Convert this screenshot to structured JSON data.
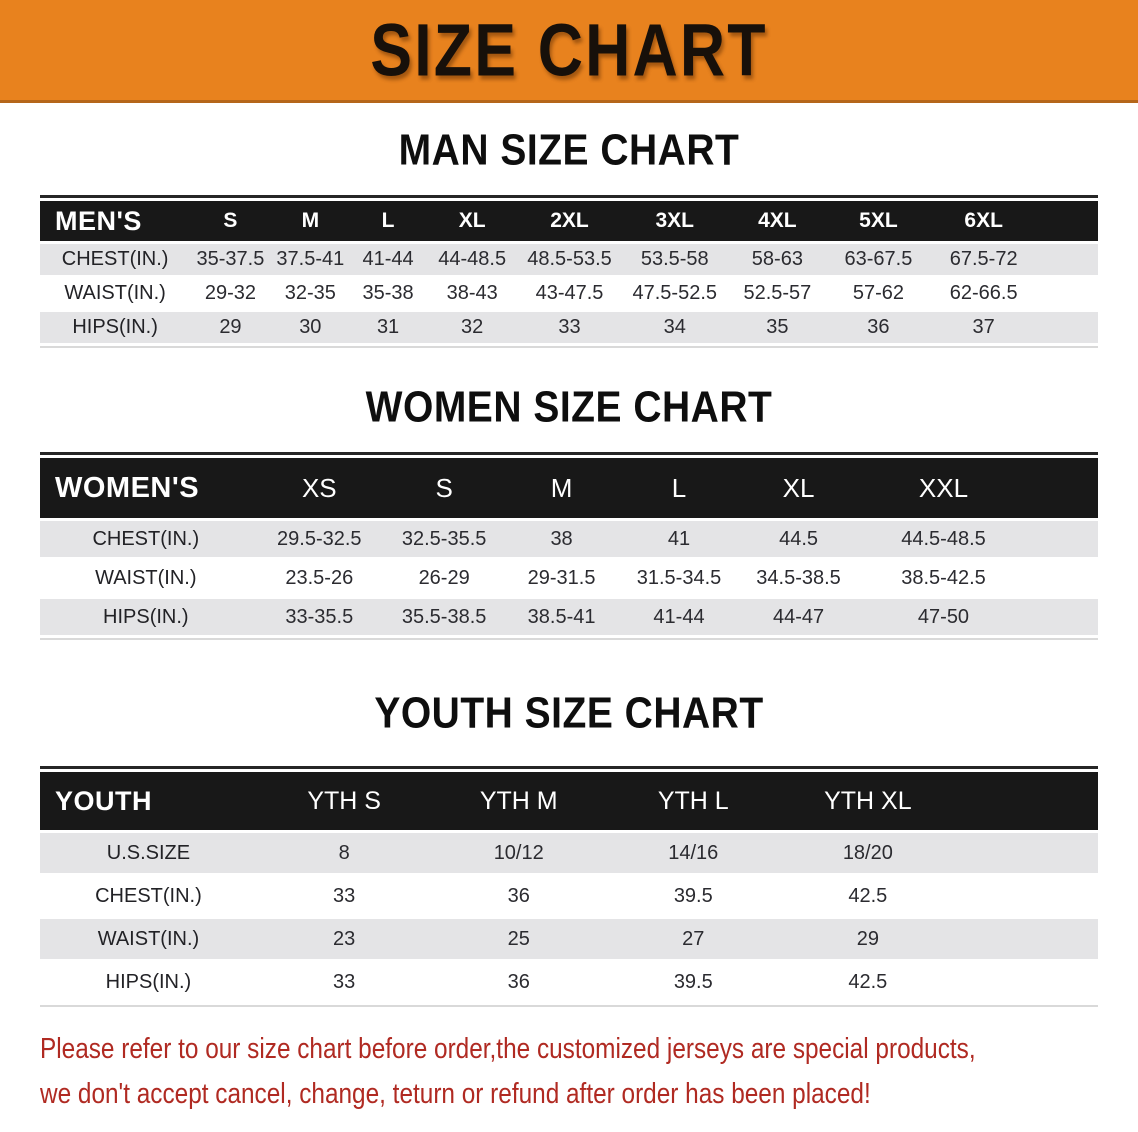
{
  "banner": {
    "title": "SIZE CHART"
  },
  "sections": [
    {
      "title": "MAN SIZE CHART",
      "table": {
        "corner": "MEN'S",
        "columns": [
          "S",
          "M",
          "L",
          "XL",
          "2XL",
          "3XL",
          "4XL",
          "5XL",
          "6XL"
        ],
        "rows": [
          {
            "label": "CHEST(IN.)",
            "values": [
              "35-37.5",
              "37.5-41",
              "41-44",
              "44-48.5",
              "48.5-53.5",
              "53.5-58",
              "58-63",
              "63-67.5",
              "67.5-72"
            ]
          },
          {
            "label": "WAIST(IN.)",
            "values": [
              "29-32",
              "32-35",
              "35-38",
              "38-43",
              "43-47.5",
              "47.5-52.5",
              "52.5-57",
              "57-62",
              "62-66.5"
            ]
          },
          {
            "label": "HIPS(IN.)",
            "values": [
              "29",
              "30",
              "31",
              "32",
              "33",
              "34",
              "35",
              "36",
              "37"
            ]
          }
        ]
      }
    },
    {
      "title": "WOMEN SIZE CHART",
      "table": {
        "corner": "WOMEN'S",
        "columns": [
          "XS",
          "S",
          "M",
          "L",
          "XL",
          "XXL"
        ],
        "rows": [
          {
            "label": "CHEST(IN.)",
            "values": [
              "29.5-32.5",
              "32.5-35.5",
              "38",
              "41",
              "44.5",
              "44.5-48.5"
            ]
          },
          {
            "label": "WAIST(IN.)",
            "values": [
              "23.5-26",
              "26-29",
              "29-31.5",
              "31.5-34.5",
              "34.5-38.5",
              "38.5-42.5"
            ]
          },
          {
            "label": "HIPS(IN.)",
            "values": [
              "33-35.5",
              "35.5-38.5",
              "38.5-41",
              "41-44",
              "44-47",
              "47-50"
            ]
          }
        ]
      }
    },
    {
      "title": "YOUTH SIZE CHART",
      "table": {
        "corner": "YOUTH",
        "columns": [
          "YTH S",
          "YTH M",
          "YTH L",
          "YTH XL"
        ],
        "rows": [
          {
            "label": "U.S.SIZE",
            "values": [
              "8",
              "10/12",
              "14/16",
              "18/20"
            ]
          },
          {
            "label": "CHEST(IN.)",
            "values": [
              "33",
              "36",
              "39.5",
              "42.5"
            ]
          },
          {
            "label": "WAIST(IN.)",
            "values": [
              "23",
              "25",
              "27",
              "29"
            ]
          },
          {
            "label": "HIPS(IN.)",
            "values": [
              "33",
              "36",
              "39.5",
              "42.5"
            ]
          }
        ]
      }
    }
  ],
  "disclaimer": {
    "line1": "Please refer to our size chart before order,the customized jerseys are special products,",
    "line2": "we don't accept cancel, change, teturn or refund after order has been placed!"
  },
  "colors": {
    "banner_bg": "#e8821e",
    "band_bg": "#181818",
    "stripe": "#e4e4e6",
    "disclaimer_text": "#b02a22"
  }
}
